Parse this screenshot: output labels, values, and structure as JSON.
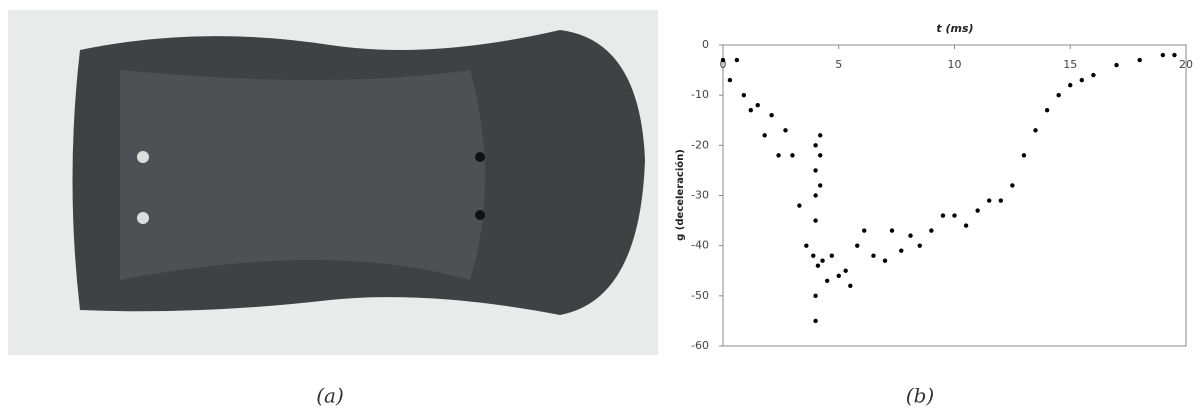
{
  "captions": {
    "a": "(a)",
    "b": "(b)"
  },
  "chart_data": {
    "type": "scatter",
    "xlabel": "t (ms)",
    "ylabel": "g (deceleración)",
    "xlim": [
      0,
      20
    ],
    "ylim": [
      -60,
      0
    ],
    "xticks": [
      0,
      5,
      10,
      15,
      20
    ],
    "yticks": [
      0,
      -10,
      -20,
      -30,
      -40,
      -50,
      -60
    ],
    "color": "#000000",
    "x": [
      0,
      0.3,
      0.6,
      0.9,
      1.2,
      1.5,
      1.8,
      2.1,
      2.4,
      2.7,
      3.0,
      3.3,
      3.6,
      3.9,
      4.0,
      4.0,
      4.0,
      4.0,
      4.0,
      4.0,
      4.1,
      4.2,
      4.2,
      4.2,
      4.3,
      4.5,
      4.7,
      5.0,
      5.3,
      5.5,
      5.8,
      6.1,
      6.5,
      7.0,
      7.3,
      7.7,
      8.1,
      8.5,
      9.0,
      9.5,
      10.0,
      10.5,
      11.0,
      11.5,
      12.0,
      12.5,
      13.0,
      13.5,
      14.0,
      14.5,
      15.0,
      15.5,
      16.0,
      17.0,
      18.0,
      19.0,
      19.5
    ],
    "y": [
      -3,
      -7,
      -3,
      -10,
      -13,
      -12,
      -18,
      -14,
      -22,
      -17,
      -22,
      -32,
      -40,
      -42,
      -20,
      -25,
      -30,
      -35,
      -50,
      -55,
      -44,
      -18,
      -22,
      -28,
      -43,
      -47,
      -42,
      -46,
      -45,
      -48,
      -40,
      -37,
      -42,
      -43,
      -37,
      -41,
      -38,
      -40,
      -37,
      -34,
      -34,
      -36,
      -33,
      -31,
      -31,
      -28,
      -22,
      -17,
      -13,
      -10,
      -8,
      -7,
      -6,
      -4,
      -3,
      -2,
      -2
    ]
  }
}
